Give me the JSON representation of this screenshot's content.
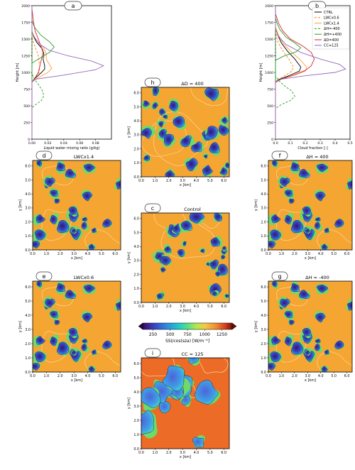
{
  "profiles": [
    {
      "badge": "a",
      "xlabel": "Liquid water mixing ratio (g/kg)",
      "ylabel": "Height [m]",
      "xticks": [
        "0.00",
        "0.02",
        "0.04",
        "0.06",
        "0.08"
      ],
      "yticks": [
        "0",
        "250",
        "500",
        "750",
        "1000",
        "1250",
        "1500",
        "1750",
        "2000"
      ],
      "xlim": [
        0,
        0.1
      ],
      "ylim": [
        0,
        2000
      ]
    },
    {
      "badge": "b",
      "xlabel": "Cloud fraction [-]",
      "ylabel": "Height [m]",
      "xticks": [
        "0.0",
        "0.1",
        "0.2",
        "0.3",
        "0.4",
        "0.5"
      ],
      "yticks": [
        "0",
        "250",
        "500",
        "750",
        "1000",
        "1250",
        "1500",
        "1750",
        "2000"
      ],
      "xlim": [
        0,
        0.5
      ],
      "ylim": [
        0,
        2000
      ]
    }
  ],
  "legend": [
    "CTRL",
    "LWCx0.6",
    "LWCx1.4",
    "ΔH=-400",
    "ΔH=+400",
    "ΔD=400",
    "CC=125"
  ],
  "maps": [
    {
      "key": "h",
      "badge": "h",
      "title": "ΔD = 400"
    },
    {
      "key": "d",
      "badge": "d",
      "title": "LWCx1.4"
    },
    {
      "key": "f",
      "badge": "f",
      "title": "ΔH = 400"
    },
    {
      "key": "c",
      "badge": "c",
      "title": "Control"
    },
    {
      "key": "e",
      "badge": "e",
      "title": "LWCx0.6"
    },
    {
      "key": "g",
      "badge": "g",
      "title": "ΔH = -400"
    },
    {
      "key": "i",
      "badge": "i",
      "title": "CC = 125"
    }
  ],
  "map_axes": {
    "xlabel": "x [km]",
    "ylabel": "y [km]",
    "ticks": [
      "0.0",
      "1.0",
      "2.0",
      "3.0",
      "4.0",
      "5.0",
      "6.0"
    ]
  },
  "colorbar": {
    "label": "SSI/cos(sza) [W/m⁻²]",
    "ticks": [
      "250",
      "500",
      "750",
      "1000",
      "1250"
    ]
  },
  "chart_data": [
    {
      "type": "line",
      "panel": "a",
      "xlabel": "Liquid water mixing ratio (g/kg)",
      "ylabel": "Height [m]",
      "xlim": [
        0,
        0.1
      ],
      "ylim": [
        0,
        2000
      ],
      "series": [
        {
          "name": "CTRL",
          "color": "#000000",
          "dash": "solid",
          "points": [
            [
              0,
              0
            ],
            [
              0,
              860
            ],
            [
              0.003,
              900
            ],
            [
              0.012,
              1000
            ],
            [
              0.016,
              1050
            ],
            [
              0.016,
              1100
            ],
            [
              0.014,
              1200
            ],
            [
              0.015,
              1280
            ],
            [
              0.013,
              1350
            ],
            [
              0.006,
              1450
            ],
            [
              0.002,
              1540
            ],
            [
              0,
              1620
            ],
            [
              0,
              2000
            ]
          ]
        },
        {
          "name": "LWCx0.6",
          "color": "#ff7f0e",
          "dash": "dashed",
          "points": [
            [
              0,
              0
            ],
            [
              0,
              860
            ],
            [
              0.004,
              920
            ],
            [
              0.009,
              1000
            ],
            [
              0.01,
              1080
            ],
            [
              0.009,
              1150
            ],
            [
              0.008,
              1250
            ],
            [
              0.004,
              1380
            ],
            [
              0.001,
              1480
            ],
            [
              0,
              1560
            ],
            [
              0,
              2000
            ]
          ]
        },
        {
          "name": "LWCx1.4",
          "color": "#ff9f3a",
          "dash": "solid",
          "points": [
            [
              0,
              0
            ],
            [
              0,
              860
            ],
            [
              0.008,
              920
            ],
            [
              0.02,
              1000
            ],
            [
              0.025,
              1060
            ],
            [
              0.022,
              1120
            ],
            [
              0.018,
              1200
            ],
            [
              0.018,
              1280
            ],
            [
              0.015,
              1360
            ],
            [
              0.008,
              1450
            ],
            [
              0.003,
              1530
            ],
            [
              0,
              1610
            ],
            [
              0,
              2000
            ]
          ]
        },
        {
          "name": "ΔH=-400",
          "color": "#2ca02c",
          "dash": "dashed",
          "points": [
            [
              0,
              0
            ],
            [
              0,
              470
            ],
            [
              0.005,
              520
            ],
            [
              0.012,
              580
            ],
            [
              0.015,
              650
            ],
            [
              0.013,
              730
            ],
            [
              0.008,
              820
            ],
            [
              0.003,
              900
            ],
            [
              0,
              980
            ],
            [
              0,
              2000
            ]
          ]
        },
        {
          "name": "ΔH=+400",
          "color": "#2ca02c",
          "dash": "solid",
          "points": [
            [
              0,
              0
            ],
            [
              0,
              1140
            ],
            [
              0.008,
              1200
            ],
            [
              0.022,
              1300
            ],
            [
              0.028,
              1380
            ],
            [
              0.022,
              1460
            ],
            [
              0.011,
              1560
            ],
            [
              0.003,
              1680
            ],
            [
              0,
              1780
            ],
            [
              0,
              2000
            ]
          ]
        },
        {
          "name": "ΔD=400",
          "color": "#d62728",
          "dash": "solid",
          "points": [
            [
              0,
              0
            ],
            [
              0,
              850
            ],
            [
              0.004,
              920
            ],
            [
              0.008,
              1000
            ],
            [
              0.01,
              1100
            ],
            [
              0.012,
              1200
            ],
            [
              0.014,
              1300
            ],
            [
              0.011,
              1400
            ],
            [
              0.008,
              1500
            ],
            [
              0.004,
              1620
            ],
            [
              0.002,
              1750
            ],
            [
              0.001,
              1860
            ],
            [
              0,
              1950
            ],
            [
              0,
              2000
            ]
          ]
        },
        {
          "name": "CC=125",
          "color": "#9467bd",
          "dash": "solid",
          "points": [
            [
              0,
              0
            ],
            [
              0,
              860
            ],
            [
              0.005,
              900
            ],
            [
              0.04,
              960
            ],
            [
              0.08,
              1040
            ],
            [
              0.09,
              1100
            ],
            [
              0.075,
              1170
            ],
            [
              0.045,
              1250
            ],
            [
              0.022,
              1330
            ],
            [
              0.01,
              1420
            ],
            [
              0.004,
              1510
            ],
            [
              0,
              1600
            ],
            [
              0,
              2000
            ]
          ]
        }
      ]
    },
    {
      "type": "line",
      "panel": "b",
      "xlabel": "Cloud fraction [-]",
      "ylabel": "Height [m]",
      "xlim": [
        0,
        0.5
      ],
      "ylim": [
        0,
        2000
      ],
      "series": [
        {
          "name": "CTRL",
          "color": "#000000",
          "dash": "solid",
          "points": [
            [
              0,
              0
            ],
            [
              0,
              860
            ],
            [
              0.03,
              900
            ],
            [
              0.1,
              960
            ],
            [
              0.16,
              1020
            ],
            [
              0.17,
              1080
            ],
            [
              0.13,
              1200
            ],
            [
              0.08,
              1320
            ],
            [
              0.04,
              1440
            ],
            [
              0.015,
              1560
            ],
            [
              0,
              1680
            ],
            [
              0,
              2000
            ]
          ]
        },
        {
          "name": "LWCx0.6",
          "color": "#ff7f0e",
          "dash": "dashed",
          "points": [
            [
              0,
              0
            ],
            [
              0,
              860
            ],
            [
              0.02,
              900
            ],
            [
              0.07,
              960
            ],
            [
              0.11,
              1020
            ],
            [
              0.12,
              1080
            ],
            [
              0.09,
              1200
            ],
            [
              0.05,
              1320
            ],
            [
              0.02,
              1440
            ],
            [
              0.005,
              1550
            ],
            [
              0,
              1650
            ],
            [
              0,
              2000
            ]
          ]
        },
        {
          "name": "LWCx1.4",
          "color": "#ff9f3a",
          "dash": "solid",
          "points": [
            [
              0,
              0
            ],
            [
              0,
              860
            ],
            [
              0.04,
              900
            ],
            [
              0.13,
              960
            ],
            [
              0.2,
              1020
            ],
            [
              0.21,
              1080
            ],
            [
              0.16,
              1200
            ],
            [
              0.1,
              1320
            ],
            [
              0.05,
              1440
            ],
            [
              0.02,
              1560
            ],
            [
              0,
              1680
            ],
            [
              0,
              2000
            ]
          ]
        },
        {
          "name": "ΔH=-400",
          "color": "#2ca02c",
          "dash": "dashed",
          "points": [
            [
              0,
              0
            ],
            [
              0,
              460
            ],
            [
              0.04,
              520
            ],
            [
              0.1,
              580
            ],
            [
              0.13,
              640
            ],
            [
              0.11,
              720
            ],
            [
              0.06,
              800
            ],
            [
              0.02,
              880
            ],
            [
              0,
              950
            ],
            [
              0,
              2000
            ]
          ]
        },
        {
          "name": "ΔH=+400",
          "color": "#2ca02c",
          "dash": "solid",
          "points": [
            [
              0,
              0
            ],
            [
              0,
              1180
            ],
            [
              0.05,
              1240
            ],
            [
              0.14,
              1310
            ],
            [
              0.17,
              1370
            ],
            [
              0.13,
              1440
            ],
            [
              0.07,
              1530
            ],
            [
              0.03,
              1640
            ],
            [
              0.01,
              1740
            ],
            [
              0,
              1820
            ],
            [
              0,
              2000
            ]
          ]
        },
        {
          "name": "ΔD=400",
          "color": "#d62728",
          "dash": "solid",
          "points": [
            [
              0,
              0
            ],
            [
              0,
              850
            ],
            [
              0.04,
              900
            ],
            [
              0.12,
              960
            ],
            [
              0.2,
              1030
            ],
            [
              0.24,
              1100
            ],
            [
              0.26,
              1200
            ],
            [
              0.24,
              1300
            ],
            [
              0.18,
              1400
            ],
            [
              0.1,
              1500
            ],
            [
              0.05,
              1620
            ],
            [
              0.02,
              1740
            ],
            [
              0,
              1880
            ],
            [
              0,
              2000
            ]
          ]
        },
        {
          "name": "CC=125",
          "color": "#9467bd",
          "dash": "solid",
          "points": [
            [
              0,
              0
            ],
            [
              0,
              860
            ],
            [
              0.04,
              900
            ],
            [
              0.2,
              950
            ],
            [
              0.4,
              1000
            ],
            [
              0.47,
              1050
            ],
            [
              0.43,
              1120
            ],
            [
              0.3,
              1200
            ],
            [
              0.17,
              1300
            ],
            [
              0.07,
              1420
            ],
            [
              0.02,
              1540
            ],
            [
              0,
              1650
            ],
            [
              0,
              2000
            ]
          ]
        }
      ]
    }
  ]
}
